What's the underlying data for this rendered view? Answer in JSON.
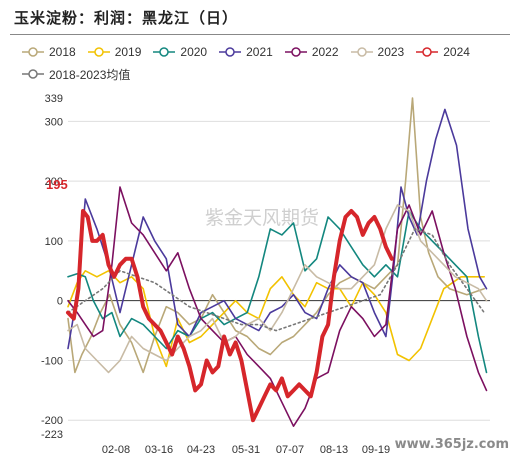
{
  "header": {
    "title": "玉米淀粉：利润：黑龙江（日）"
  },
  "watermarks": {
    "center": "紫金天风期货",
    "site": "www.365jz.com"
  },
  "colors": {
    "2018": "#b9a878",
    "2019": "#f2c200",
    "2020": "#13877f",
    "2021": "#4b3a9c",
    "2022": "#7c1060",
    "2023": "#c8bba5",
    "2024": "#d6262b",
    "avg": "#777777"
  },
  "chart_data": {
    "type": "line",
    "title": "玉米淀粉：利润：黑龙江（日）",
    "xlabel": "",
    "ylabel": "",
    "x_ticks": [
      "02-08",
      "03-16",
      "04-23",
      "05-31",
      "07-07",
      "08-13",
      "09-19"
    ],
    "y_ticks": [
      -223,
      -200,
      -100,
      0,
      100,
      195,
      200,
      300,
      339
    ],
    "ylim": [
      -223,
      339
    ],
    "annotation": {
      "label": "195",
      "value": 195
    },
    "x_domain": [
      0,
      365
    ],
    "series": [
      {
        "name": "2018",
        "color_key": "2018",
        "x": [
          0,
          6,
          12,
          20,
          28,
          36,
          45,
          55,
          65,
          75,
          85,
          95,
          105,
          115,
          125,
          135,
          145,
          155,
          165,
          175,
          185,
          195,
          205,
          215,
          225,
          235,
          245,
          255,
          265,
          275,
          285,
          292,
          298,
          305,
          312,
          320,
          330,
          345,
          360
        ],
        "y": [
          -30,
          -120,
          -90,
          -60,
          -20,
          10,
          -40,
          -70,
          -120,
          -60,
          -10,
          -20,
          -40,
          -30,
          10,
          -20,
          -50,
          -60,
          -80,
          -90,
          -70,
          -60,
          -40,
          -20,
          10,
          30,
          40,
          30,
          20,
          40,
          60,
          200,
          339,
          140,
          80,
          40,
          20,
          10,
          20
        ]
      },
      {
        "name": "2019",
        "color_key": "2019",
        "x": [
          0,
          8,
          15,
          25,
          35,
          45,
          55,
          65,
          75,
          85,
          95,
          105,
          115,
          125,
          135,
          145,
          155,
          165,
          175,
          185,
          195,
          205,
          215,
          225,
          235,
          245,
          255,
          265,
          275,
          285,
          295,
          305,
          315,
          325,
          340,
          360
        ],
        "y": [
          -10,
          30,
          50,
          40,
          50,
          30,
          40,
          20,
          -60,
          -110,
          -30,
          -70,
          -60,
          -40,
          -20,
          0,
          -20,
          -30,
          20,
          40,
          10,
          -10,
          30,
          20,
          20,
          -10,
          30,
          10,
          -20,
          -90,
          -100,
          -80,
          -30,
          20,
          40,
          40
        ]
      },
      {
        "name": "2020",
        "color_key": "2020",
        "x": [
          0,
          8,
          15,
          22,
          30,
          38,
          45,
          55,
          65,
          75,
          85,
          95,
          105,
          115,
          125,
          135,
          145,
          155,
          165,
          175,
          185,
          195,
          205,
          215,
          225,
          235,
          245,
          255,
          265,
          275,
          285,
          295,
          305,
          315,
          325,
          335,
          345,
          355,
          362
        ],
        "y": [
          40,
          45,
          40,
          0,
          -30,
          -20,
          -60,
          -30,
          -40,
          -60,
          -80,
          -50,
          -60,
          -30,
          -20,
          -40,
          -30,
          -20,
          40,
          120,
          110,
          130,
          50,
          70,
          140,
          120,
          90,
          60,
          40,
          60,
          40,
          150,
          120,
          100,
          80,
          60,
          40,
          -60,
          -120
        ]
      },
      {
        "name": "2021",
        "color_key": "2021",
        "x": [
          0,
          8,
          15,
          25,
          35,
          45,
          55,
          65,
          75,
          85,
          95,
          105,
          115,
          125,
          135,
          145,
          155,
          165,
          175,
          185,
          195,
          205,
          215,
          225,
          235,
          245,
          255,
          265,
          275,
          282,
          288,
          295,
          302,
          310,
          318,
          326,
          336,
          346,
          356,
          362
        ],
        "y": [
          -80,
          10,
          170,
          120,
          60,
          -20,
          60,
          140,
          100,
          70,
          -40,
          -60,
          -20,
          -10,
          0,
          -30,
          -40,
          -50,
          -20,
          -10,
          10,
          -20,
          -30,
          20,
          60,
          40,
          30,
          -20,
          -60,
          60,
          190,
          140,
          110,
          200,
          270,
          320,
          260,
          120,
          40,
          20
        ]
      },
      {
        "name": "2022",
        "color_key": "2022",
        "x": [
          0,
          8,
          15,
          22,
          30,
          38,
          45,
          55,
          65,
          75,
          85,
          95,
          105,
          115,
          125,
          135,
          145,
          155,
          165,
          175,
          185,
          195,
          205,
          215,
          225,
          235,
          245,
          255,
          265,
          275,
          285,
          295,
          305,
          315,
          325,
          335,
          345,
          355,
          362
        ],
        "y": [
          0,
          -20,
          -40,
          -60,
          -50,
          60,
          190,
          130,
          110,
          80,
          50,
          80,
          20,
          -30,
          -50,
          -70,
          -60,
          -90,
          -110,
          -130,
          -170,
          -210,
          -180,
          -130,
          -120,
          -50,
          -10,
          -30,
          -60,
          -40,
          120,
          160,
          110,
          150,
          80,
          20,
          -60,
          -120,
          -150
        ]
      },
      {
        "name": "2023",
        "color_key": "2023",
        "x": [
          0,
          8,
          15,
          25,
          35,
          45,
          55,
          65,
          75,
          85,
          95,
          105,
          115,
          125,
          135,
          145,
          155,
          165,
          175,
          185,
          195,
          205,
          215,
          225,
          235,
          245,
          255,
          265,
          275,
          285,
          295,
          305,
          315,
          325,
          335,
          345,
          355,
          362
        ],
        "y": [
          -50,
          -40,
          -80,
          -100,
          -120,
          -100,
          -60,
          -80,
          -90,
          -100,
          -80,
          -60,
          -50,
          -30,
          -70,
          -60,
          -40,
          -30,
          -50,
          -20,
          20,
          60,
          40,
          30,
          20,
          20,
          40,
          60,
          120,
          160,
          150,
          100,
          80,
          60,
          40,
          30,
          20,
          0
        ]
      },
      {
        "name": "2024",
        "color_key": "2024",
        "x": [
          0,
          5,
          9,
          13,
          17,
          21,
          25,
          30,
          35,
          40,
          45,
          50,
          55,
          60,
          65,
          70,
          75,
          80,
          85,
          90,
          95,
          100,
          105,
          110,
          115,
          120,
          125,
          130,
          135,
          140,
          145,
          150,
          155,
          160,
          165,
          170,
          175,
          180,
          185,
          190,
          195,
          200,
          205,
          210,
          215,
          220,
          225,
          230,
          235,
          240,
          245,
          250,
          255,
          260,
          265,
          270,
          275,
          280
        ],
        "y": [
          -20,
          -30,
          20,
          150,
          140,
          100,
          100,
          110,
          60,
          40,
          60,
          70,
          70,
          40,
          -10,
          -30,
          -40,
          -50,
          -70,
          -90,
          -60,
          -80,
          -110,
          -150,
          -140,
          -100,
          -120,
          -110,
          -60,
          -90,
          -70,
          -100,
          -150,
          -200,
          -180,
          -160,
          -140,
          -150,
          -130,
          -160,
          -150,
          -140,
          -150,
          -160,
          -120,
          -60,
          -40,
          40,
          100,
          140,
          150,
          140,
          110,
          130,
          140,
          120,
          90,
          70
        ]
      },
      {
        "name": "2018-2023均值",
        "color_key": "avg",
        "dashed": true,
        "x": [
          0,
          15,
          30,
          45,
          60,
          75,
          90,
          105,
          120,
          135,
          150,
          165,
          180,
          195,
          210,
          225,
          240,
          255,
          270,
          285,
          300,
          315,
          330,
          345,
          360
        ],
        "y": [
          -20,
          0,
          20,
          50,
          40,
          30,
          10,
          -10,
          -20,
          -30,
          -40,
          -40,
          -50,
          -40,
          -30,
          -20,
          -10,
          0,
          10,
          60,
          120,
          110,
          60,
          20,
          -20
        ]
      }
    ]
  }
}
